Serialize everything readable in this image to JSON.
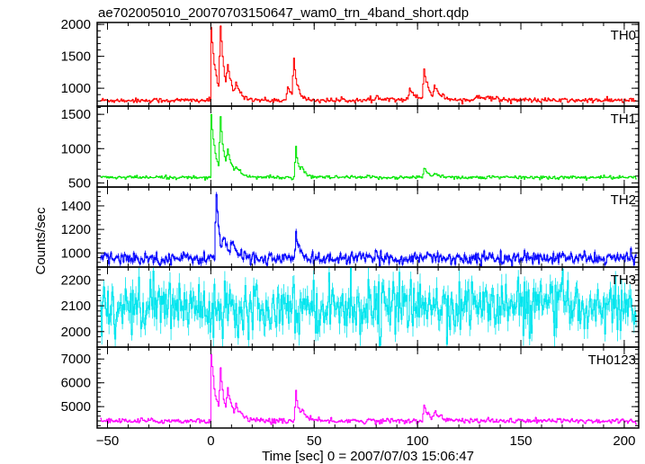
{
  "chart_data": {
    "type": "line",
    "title": "ae702005010_20070703150647_wam0_trn_4band_short.qdp",
    "xlabel": "Time [sec] 0 = 2007/07/03 15:06:47",
    "ylabel": "Counts/sec",
    "xlim": [
      -55,
      207
    ],
    "xticks": [
      -50,
      0,
      50,
      100,
      150,
      200
    ],
    "xtick_labels": [
      "−50",
      "0",
      "50",
      "100",
      "150",
      "200"
    ],
    "grid": false,
    "panels": [
      {
        "name": "TH0",
        "color": "#ff0000",
        "ylim": [
          720,
          2030
        ],
        "yticks": [
          1000,
          1500,
          2000
        ],
        "baseline": 810,
        "noise": 20,
        "features": [
          [
            0,
            1950,
            2.2
          ],
          [
            4.5,
            1820,
            1.8
          ],
          [
            8,
            1180,
            2.5
          ],
          [
            12,
            980,
            3
          ],
          [
            40,
            1380,
            1.6
          ],
          [
            37,
            1000,
            3
          ],
          [
            96,
            960,
            4
          ],
          [
            103,
            1260,
            2.2
          ],
          [
            108,
            980,
            3.5
          ],
          [
            128,
            890,
            8
          ],
          [
            80,
            860,
            10
          ]
        ]
      },
      {
        "name": "TH1",
        "color": "#00e600",
        "ylim": [
          440,
          1620
        ],
        "yticks": [
          500,
          1000,
          1500
        ],
        "baseline": 580,
        "noise": 15,
        "features": [
          [
            0,
            1480,
            2.2
          ],
          [
            4.5,
            1340,
            1.8
          ],
          [
            8,
            850,
            2.5
          ],
          [
            12,
            680,
            3
          ],
          [
            41,
            1000,
            1.5
          ],
          [
            44,
            660,
            2
          ],
          [
            103,
            710,
            2.5
          ],
          [
            108,
            630,
            3
          ]
        ]
      },
      {
        "name": "TH2",
        "color": "#0000ff",
        "ylim": [
          880,
          1560
        ],
        "yticks": [
          1000,
          1200,
          1400
        ],
        "baseline": 955,
        "noise": 28,
        "features": [
          [
            2.5,
            1500,
            1.5
          ],
          [
            6,
            1090,
            2.5
          ],
          [
            10,
            1060,
            3
          ],
          [
            41,
            1160,
            1.2
          ],
          [
            104,
            990,
            3
          ]
        ]
      },
      {
        "name": "TH3",
        "color": "#00e5ee",
        "ylim": [
          1940,
          2250
        ],
        "yticks": [
          2000,
          2100,
          2200
        ],
        "baseline": 2100,
        "noise": 55,
        "features": []
      },
      {
        "name": "TH0123",
        "color": "#ff00ff",
        "ylim": [
          4100,
          7500
        ],
        "yticks": [
          5000,
          6000,
          7000
        ],
        "baseline": 4400,
        "noise": 60,
        "features": [
          [
            0,
            7200,
            2.2
          ],
          [
            4.5,
            6200,
            1.8
          ],
          [
            8,
            5500,
            2.5
          ],
          [
            12,
            4850,
            3
          ],
          [
            41,
            5650,
            1.5
          ],
          [
            44,
            4750,
            2
          ],
          [
            103,
            5050,
            2.5
          ],
          [
            108,
            4700,
            3.5
          ]
        ]
      }
    ]
  }
}
